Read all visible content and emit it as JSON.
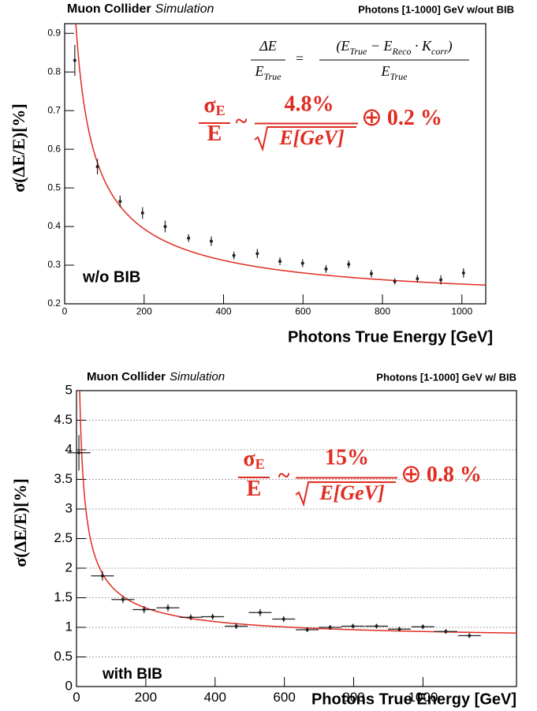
{
  "chart_data": [
    {
      "type": "scatter",
      "header": {
        "experiment": "Muon Collider",
        "status": "Simulation",
        "sample": "Photons [1-1000] GeV w/out BIB"
      },
      "xlabel": "Photons True Energy [GeV]",
      "ylabel": "σ(ΔE/E)[%]",
      "annotation": "w/o BIB",
      "xlim": [
        0,
        1060
      ],
      "ylim": [
        0.2,
        0.925
      ],
      "xticks": [
        0,
        200,
        400,
        600,
        800,
        1000
      ],
      "yticks": [
        0.2,
        0.3,
        0.4,
        0.5,
        0.6,
        0.7,
        0.8,
        0.9
      ],
      "grid": false,
      "x": [
        25.5,
        82.5,
        139.5,
        196,
        253,
        312,
        369,
        426,
        485,
        542,
        599,
        658,
        715,
        772,
        831,
        888,
        947,
        1004
      ],
      "values": [
        0.83,
        0.555,
        0.465,
        0.435,
        0.4,
        0.37,
        0.362,
        0.325,
        0.33,
        0.31,
        0.305,
        0.29,
        0.302,
        0.278,
        0.258,
        0.265,
        0.262,
        0.28
      ],
      "errors": [
        0.04,
        0.02,
        0.015,
        0.015,
        0.015,
        0.01,
        0.012,
        0.01,
        0.012,
        0.01,
        0.01,
        0.01,
        0.01,
        0.01,
        0.008,
        0.01,
        0.012,
        0.012
      ],
      "color": "#222222",
      "fit": {
        "stochastic": 4.8,
        "constant": 0.2,
        "color": "#e02b20"
      },
      "resolution_formula": {
        "lhs_numerator": [
          {
            "text": "σ"
          },
          {
            "text": "E",
            "sub": true
          }
        ],
        "lhs_denominator": [
          {
            "text": "E"
          }
        ],
        "relation": "~",
        "stochastic_label": "4.8%",
        "sqrt_argument": "E[GeV]",
        "combine": "⊕",
        "constant_label": "0.2 %"
      },
      "definition": {
        "lhs_numerator": [
          {
            "text": "ΔE"
          }
        ],
        "lhs_denominator": [
          {
            "text": "E"
          },
          {
            "text": "True",
            "sub": true
          }
        ],
        "relation": "=",
        "rhs_numerator": [
          {
            "text": "(E"
          },
          {
            "text": "True",
            "sub": true
          },
          {
            "text": " − E"
          },
          {
            "text": "Reco",
            "sub": true
          },
          {
            "text": " · K"
          },
          {
            "text": "corr",
            "sub": true
          },
          {
            "text": ")"
          }
        ],
        "rhs_denominator": [
          {
            "text": "E"
          },
          {
            "text": "True",
            "sub": true
          }
        ]
      }
    },
    {
      "type": "scatter",
      "header": {
        "experiment": "Muon Collider",
        "status": "Simulation",
        "sample": "Photons [1-1000] GeV w/ BIB"
      },
      "xlabel": "Photons True Energy [GeV]",
      "ylabel": "σ(ΔE/E)[%]",
      "annotation": "with BIB",
      "xlim": [
        0,
        1270
      ],
      "ylim": [
        0,
        5
      ],
      "xticks": [
        0,
        200,
        400,
        600,
        800,
        1000
      ],
      "yticks": [
        0,
        0.5,
        1,
        1.5,
        2,
        2.5,
        3,
        3.5,
        4,
        4.5,
        5
      ],
      "grid": true,
      "x": [
        7,
        75,
        134,
        195,
        264,
        330,
        393,
        461,
        530,
        598,
        666,
        732,
        798,
        866,
        932,
        1000,
        1066,
        1134
      ],
      "values": [
        3.95,
        1.87,
        1.47,
        1.3,
        1.33,
        1.17,
        1.18,
        1.02,
        1.25,
        1.14,
        0.96,
        1.0,
        1.02,
        1.02,
        0.97,
        1.01,
        0.93,
        0.86
      ],
      "errors": [
        0.3,
        0.08,
        0.06,
        0.06,
        0.06,
        0.05,
        0.05,
        0.05,
        0.06,
        0.05,
        0.04,
        0.04,
        0.04,
        0.04,
        0.04,
        0.04,
        0.04,
        0.04
      ],
      "xerrors": [
        33,
        33,
        33,
        33,
        33,
        33,
        33,
        33,
        33,
        33,
        33,
        33,
        33,
        33,
        33,
        33,
        33,
        33
      ],
      "color": "#222222",
      "fit": {
        "stochastic": 15,
        "constant": 0.8,
        "color": "#e02b20"
      },
      "resolution_formula": {
        "lhs_numerator": [
          {
            "text": "σ"
          },
          {
            "text": "E",
            "sub": true
          }
        ],
        "lhs_denominator": [
          {
            "text": "E"
          }
        ],
        "relation": "~",
        "stochastic_label": "15%",
        "sqrt_argument": "E[GeV]",
        "combine": "⊕",
        "constant_label": "0.8 %"
      }
    }
  ]
}
